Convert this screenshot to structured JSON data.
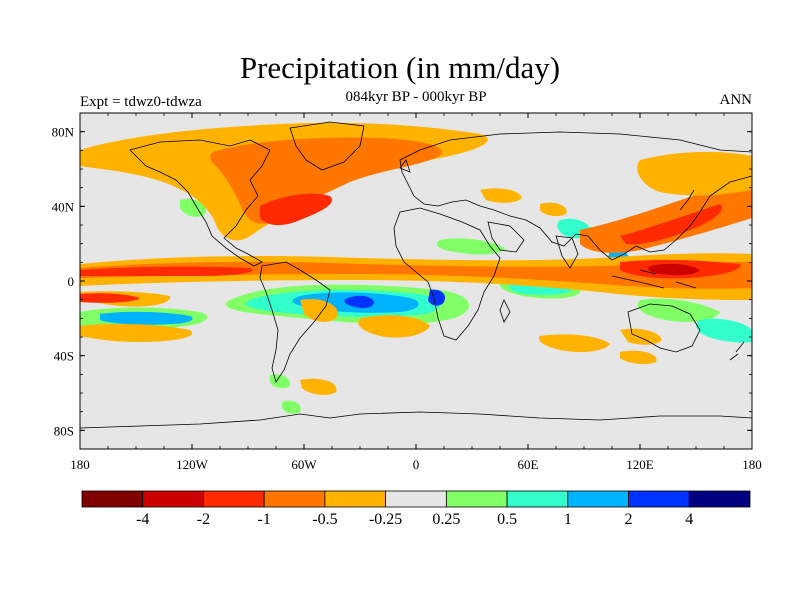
{
  "title": "Precipitation (in mm/day)",
  "subtitle": "084kyr BP - 000kyr BP",
  "left_label": "Expt = tdwz0-tdwza",
  "right_label": "ANN",
  "map": {
    "projection": "cylindrical-equidistant",
    "lon_range": [
      -180,
      180
    ],
    "lat_range": [
      -90,
      90
    ],
    "background_color": "#e6e6e6",
    "x_ticks": [
      {
        "lon": -180,
        "label": "180"
      },
      {
        "lon": -120,
        "label": "120W"
      },
      {
        "lon": -60,
        "label": "60W"
      },
      {
        "lon": 0,
        "label": "0"
      },
      {
        "lon": 60,
        "label": "60E"
      },
      {
        "lon": 120,
        "label": "120E"
      },
      {
        "lon": 180,
        "label": "180"
      }
    ],
    "y_ticks": [
      {
        "lat": 80,
        "label": "80N"
      },
      {
        "lat": 40,
        "label": "40N"
      },
      {
        "lat": 0,
        "label": "0"
      },
      {
        "lat": -40,
        "label": "40S"
      },
      {
        "lat": -80,
        "label": "80S"
      }
    ]
  },
  "colorbar": {
    "colors": [
      "#800000",
      "#cc0000",
      "#ff2a00",
      "#ff7700",
      "#ffb300",
      "#e6e6e6",
      "#80ff66",
      "#33ffcc",
      "#00b3ff",
      "#0033ff",
      "#000080"
    ],
    "labels": [
      "-4",
      "-2",
      "-1",
      "-0.5",
      "-0.25",
      "0.25",
      "0.5",
      "1",
      "2",
      "4"
    ]
  }
}
